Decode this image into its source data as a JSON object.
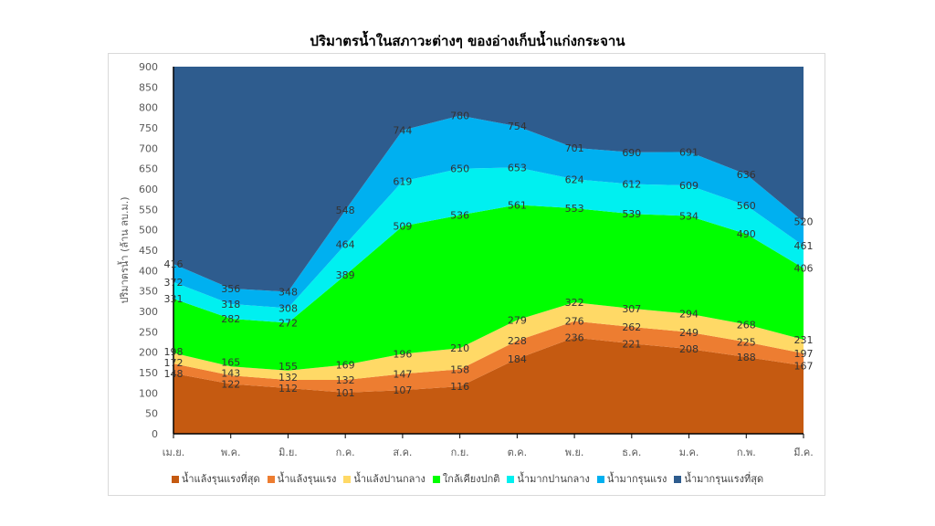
{
  "chart_data": {
    "type": "area",
    "stacking": "boundaries shown as cumulative levels",
    "title": "ปริมาตรน้ำในสภาวะต่างๆ ของอ่างเก็บน้ำแก่งกระจาน",
    "xlabel": "",
    "ylabel": "ปริมาตรน้ำ (ล้าน ลบ.ม.)",
    "ylim": [
      0,
      900
    ],
    "yticks": [
      0,
      50,
      100,
      150,
      200,
      250,
      300,
      350,
      400,
      450,
      500,
      550,
      600,
      650,
      700,
      750,
      800,
      850,
      900
    ],
    "categories": [
      "เม.ย.",
      "พ.ค.",
      "มิ.ย.",
      "ก.ค.",
      "ส.ค.",
      "ก.ย.",
      "ต.ค.",
      "พ.ย.",
      "ธ.ค.",
      "ม.ค.",
      "ก.พ.",
      "มี.ค."
    ],
    "legend_position": "bottom",
    "series": [
      {
        "name": "น้ำแล้งรุนแรงที่สุด",
        "color": "#C55A11",
        "values": [
          148,
          122,
          112,
          101,
          107,
          116,
          184,
          236,
          221,
          208,
          188,
          167
        ]
      },
      {
        "name": "น้ำแล้งรุนแรง",
        "color": "#ED7D31",
        "values": [
          172,
          143,
          132,
          132,
          147,
          158,
          228,
          276,
          262,
          249,
          225,
          197
        ]
      },
      {
        "name": "น้ำแล้งปานกลาง",
        "color": "#FFD966",
        "values": [
          198,
          165,
          155,
          169,
          196,
          210,
          279,
          322,
          307,
          294,
          268,
          231
        ]
      },
      {
        "name": "ใกล้เคียงปกติ",
        "color": "#00FF00",
        "values": [
          331,
          282,
          272,
          389,
          509,
          536,
          561,
          553,
          539,
          534,
          490,
          406
        ]
      },
      {
        "name": "น้ำมากปานกลาง",
        "color": "#00F0F0",
        "values": [
          372,
          318,
          308,
          464,
          619,
          650,
          653,
          624,
          612,
          609,
          560,
          461
        ]
      },
      {
        "name": "น้ำมากรุนแรง",
        "color": "#00B0F0",
        "values": [
          416,
          356,
          348,
          548,
          744,
          780,
          754,
          701,
          690,
          691,
          636,
          520
        ]
      },
      {
        "name": "น้ำมากรุนแรงที่สุด",
        "color": "#2E5C8E",
        "values": [
          900,
          900,
          900,
          900,
          900,
          900,
          900,
          900,
          900,
          900,
          900,
          900
        ],
        "labels_shown": false
      }
    ]
  }
}
